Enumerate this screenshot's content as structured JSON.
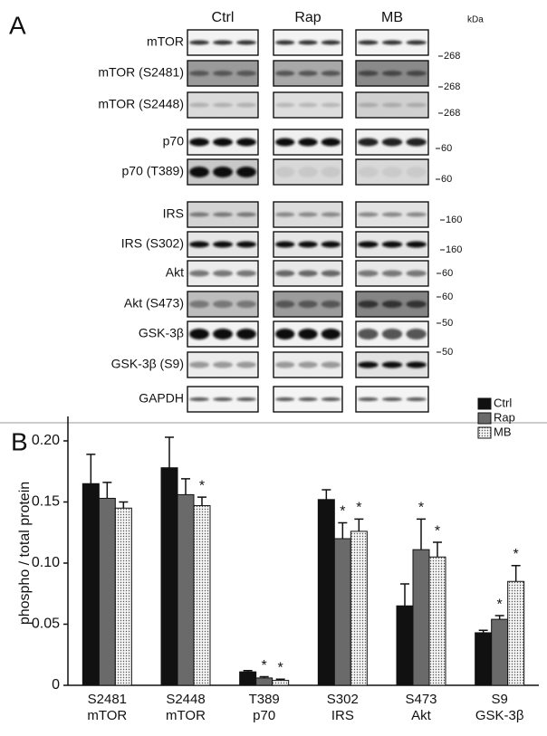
{
  "panel_a": {
    "label": "A",
    "groups": [
      "Ctrl",
      "Rap",
      "MB"
    ],
    "unit": "kDa",
    "rows": [
      {
        "label": "mTOR",
        "marker": "268"
      },
      {
        "label": "mTOR (S2481)",
        "marker": "268"
      },
      {
        "label": "mTOR (S2448)",
        "marker": "268"
      },
      {
        "label": "p70",
        "marker": "60"
      },
      {
        "label": "p70 (T389)",
        "marker": "60"
      },
      {
        "label": "IRS",
        "marker": "160"
      },
      {
        "label": "IRS (S302)",
        "marker": "160"
      },
      {
        "label": "Akt",
        "marker": "60"
      },
      {
        "label": "Akt (S473)",
        "marker": "60"
      },
      {
        "label": "GSK-3β",
        "marker": "50"
      },
      {
        "label": "GSK-3β (S9)",
        "marker": "50"
      },
      {
        "label": "GAPDH",
        "marker": null
      }
    ]
  },
  "chart_data": {
    "type": "bar",
    "panel_label": "B",
    "y_label": "phospho / total protein",
    "categories": [
      "S2481",
      "S2448",
      "T389",
      "S302",
      "S473",
      "S9"
    ],
    "proteins": [
      "mTOR",
      "mTOR",
      "p70",
      "IRS",
      "Akt",
      "GSK-3β"
    ],
    "ylim": [
      0,
      0.22
    ],
    "yticks": [
      0,
      0.05,
      {
        "value": 0.1,
        "label": "0.10"
      },
      0.15,
      {
        "value": 0.2,
        "label": "0.20"
      }
    ],
    "legend": "upper right",
    "series": [
      {
        "name": "Ctrl",
        "color": "#111111",
        "values": [
          0.165,
          0.178,
          0.011,
          0.152,
          0.065,
          0.043
        ],
        "errors": [
          0.024,
          0.025,
          0.001,
          0.008,
          0.018,
          0.002
        ],
        "significance": [
          null,
          null,
          null,
          null,
          null,
          null
        ]
      },
      {
        "name": "Rap",
        "color": "#6a6a6a",
        "values": [
          0.153,
          0.156,
          0.006,
          0.12,
          0.111,
          0.054
        ],
        "errors": [
          0.013,
          0.013,
          0.001,
          0.013,
          0.025,
          0.003
        ],
        "significance": [
          null,
          null,
          "*",
          "*",
          "*",
          "*"
        ]
      },
      {
        "name": "MB",
        "color": "#d8d8d8",
        "fill_pattern": "dotted",
        "values": [
          0.145,
          0.147,
          0.004,
          0.126,
          0.105,
          0.085
        ],
        "errors": [
          0.005,
          0.007,
          0.001,
          0.01,
          0.012,
          0.013
        ],
        "significance": [
          null,
          "*",
          "*",
          "*",
          "*",
          "*"
        ]
      }
    ]
  }
}
